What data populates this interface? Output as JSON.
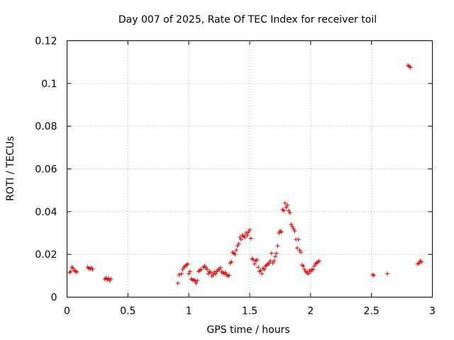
{
  "chart_data": {
    "type": "scatter",
    "title": "Day 007 of 2025, Rate Of TEC Index for receiver toil",
    "xlabel": "GPS time / hours",
    "ylabel": "ROTI / TECUs",
    "xlim": [
      0,
      3
    ],
    "ylim": [
      0,
      0.12
    ],
    "xticks": [
      0,
      0.5,
      1,
      1.5,
      2,
      2.5,
      3
    ],
    "xtick_labels": [
      "0",
      "0.5",
      "1",
      "1.5",
      "2",
      "2.5",
      "3"
    ],
    "yticks": [
      0,
      0.02,
      0.04,
      0.06,
      0.08,
      0.1,
      0.12
    ],
    "ytick_labels": [
      "0",
      "0.02",
      "0.04",
      "0.06",
      "0.08",
      "0.1",
      "0.12"
    ],
    "grid": true,
    "marker": "+",
    "marker_color": "#dd0000",
    "series": [
      {
        "name": "ROTI",
        "x": [
          0.02,
          0.03,
          0.04,
          0.05,
          0.06,
          0.07,
          0.08,
          0.17,
          0.18,
          0.19,
          0.2,
          0.21,
          0.31,
          0.32,
          0.33,
          0.34,
          0.35,
          0.36,
          0.91,
          0.92,
          0.94,
          0.95,
          0.96,
          0.97,
          0.98,
          0.99,
          1.0,
          1.01,
          1.02,
          1.03,
          1.04,
          1.05,
          1.06,
          1.07,
          1.08,
          1.09,
          1.1,
          1.12,
          1.13,
          1.14,
          1.15,
          1.16,
          1.17,
          1.18,
          1.19,
          1.2,
          1.21,
          1.22,
          1.23,
          1.24,
          1.25,
          1.26,
          1.27,
          1.28,
          1.29,
          1.3,
          1.31,
          1.32,
          1.33,
          1.34,
          1.35,
          1.36,
          1.37,
          1.38,
          1.39,
          1.4,
          1.41,
          1.42,
          1.43,
          1.44,
          1.45,
          1.46,
          1.47,
          1.48,
          1.49,
          1.5,
          1.51,
          1.52,
          1.53,
          1.54,
          1.55,
          1.56,
          1.57,
          1.58,
          1.59,
          1.6,
          1.61,
          1.62,
          1.63,
          1.64,
          1.65,
          1.66,
          1.67,
          1.68,
          1.69,
          1.7,
          1.71,
          1.72,
          1.73,
          1.74,
          1.75,
          1.76,
          1.77,
          1.78,
          1.79,
          1.8,
          1.81,
          1.82,
          1.83,
          1.84,
          1.85,
          1.86,
          1.87,
          1.88,
          1.89,
          1.9,
          1.91,
          1.92,
          1.93,
          1.94,
          1.95,
          1.96,
          1.97,
          1.98,
          1.99,
          2.0,
          2.01,
          2.02,
          2.03,
          2.04,
          2.05,
          2.06,
          2.07,
          2.51,
          2.52,
          2.63,
          2.8,
          2.81,
          2.82,
          2.88,
          2.89,
          2.9,
          2.91
        ],
        "y": [
          0.0115,
          0.012,
          0.014,
          0.0135,
          0.0125,
          0.012,
          0.0118,
          0.014,
          0.0135,
          0.0132,
          0.0138,
          0.013,
          0.0085,
          0.009,
          0.0082,
          0.0088,
          0.0078,
          0.0085,
          0.0065,
          0.0105,
          0.011,
          0.013,
          0.014,
          0.0145,
          0.015,
          0.0155,
          0.011,
          0.012,
          0.0085,
          0.008,
          0.0082,
          0.0075,
          0.0065,
          0.0078,
          0.012,
          0.0125,
          0.013,
          0.014,
          0.0145,
          0.0138,
          0.013,
          0.011,
          0.012,
          0.0115,
          0.0098,
          0.0105,
          0.0118,
          0.011,
          0.012,
          0.0128,
          0.013,
          0.0138,
          0.0118,
          0.0115,
          0.011,
          0.0115,
          0.0105,
          0.0098,
          0.0102,
          0.016,
          0.0165,
          0.021,
          0.0205,
          0.02,
          0.022,
          0.024,
          0.025,
          0.028,
          0.027,
          0.029,
          0.0285,
          0.028,
          0.03,
          0.029,
          0.0305,
          0.0315,
          0.0275,
          0.018,
          0.0175,
          0.0155,
          0.017,
          0.0175,
          0.014,
          0.012,
          0.0125,
          0.011,
          0.0135,
          0.013,
          0.0145,
          0.015,
          0.0155,
          0.016,
          0.017,
          0.0205,
          0.016,
          0.017,
          0.019,
          0.0205,
          0.024,
          0.03,
          0.031,
          0.0305,
          0.041,
          0.0405,
          0.044,
          0.042,
          0.043,
          0.0405,
          0.0395,
          0.034,
          0.033,
          0.032,
          0.031,
          0.027,
          0.023,
          0.027,
          0.022,
          0.021,
          0.015,
          0.0145,
          0.013,
          0.012,
          0.0115,
          0.011,
          0.0125,
          0.0118,
          0.0128,
          0.013,
          0.0145,
          0.0155,
          0.016,
          0.0165,
          0.017,
          0.0105,
          0.0102,
          0.011,
          0.1085,
          0.108,
          0.1075,
          0.0155,
          0.016,
          0.017,
          0.0165
        ]
      }
    ]
  }
}
